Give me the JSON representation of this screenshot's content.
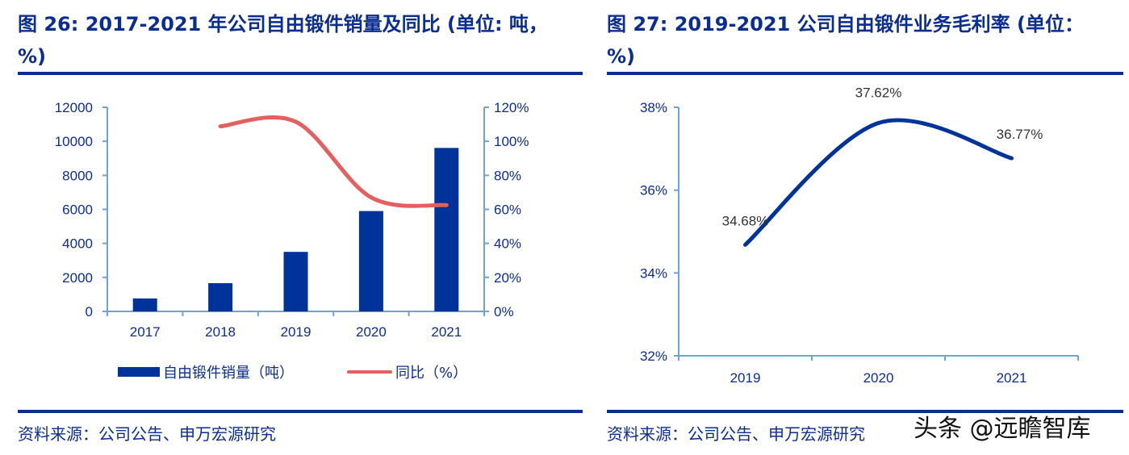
{
  "left_panel": {
    "title": "图 26: 2017-2021 年公司自由锻件销量及同比 (单位: 吨，%)",
    "source": "资料来源：公司公告、申万宏源研究"
  },
  "right_panel": {
    "title": "图 27: 2019-2021 公司自由锻件业务毛利率 (单位：%)",
    "source": "资料来源：公司公告、申万宏源研究"
  },
  "watermark": "头条 @远瞻智库",
  "colors": {
    "bar": "#003399",
    "line_red": "#e46060",
    "line_blue": "#003399",
    "axis": "#6fa3d8",
    "text_blue": "#0b2d8f"
  },
  "chart_data": [
    {
      "type": "bar",
      "title": "2017-2021 年公司自由锻件销量及同比",
      "categories": [
        "2017",
        "2018",
        "2019",
        "2020",
        "2021"
      ],
      "y_left": {
        "lim": [
          0,
          12000
        ],
        "ticks": [
          "0",
          "2000",
          "4000",
          "6000",
          "8000",
          "10000",
          "12000"
        ]
      },
      "y_right": {
        "lim": [
          0,
          120
        ],
        "ticks": [
          "0%",
          "20%",
          "40%",
          "60%",
          "80%",
          "100%",
          "120%"
        ]
      },
      "series": [
        {
          "name": "自由锻件销量（吨）",
          "type": "bar",
          "axis": "left",
          "values": [
            760,
            1660,
            3500,
            5900,
            9610
          ]
        },
        {
          "name": "同比（%）",
          "type": "line",
          "axis": "right",
          "smooth": true,
          "values": [
            null,
            108.8,
            111.5,
            67,
            62.5
          ]
        }
      ],
      "legend": "bottom",
      "grid": false
    },
    {
      "type": "line",
      "title": "2019-2021 公司自由锻件业务毛利率",
      "categories": [
        "2019",
        "2020",
        "2021"
      ],
      "ylim": [
        32,
        38
      ],
      "y_ticks": [
        "32%",
        "34%",
        "36%",
        "38%"
      ],
      "series": [
        {
          "name": "毛利率",
          "smooth": true,
          "values": [
            34.68,
            37.62,
            36.77
          ],
          "labels": [
            "34.68%",
            "37.62%",
            "36.77%"
          ]
        }
      ],
      "legend": "none",
      "grid": false
    }
  ]
}
